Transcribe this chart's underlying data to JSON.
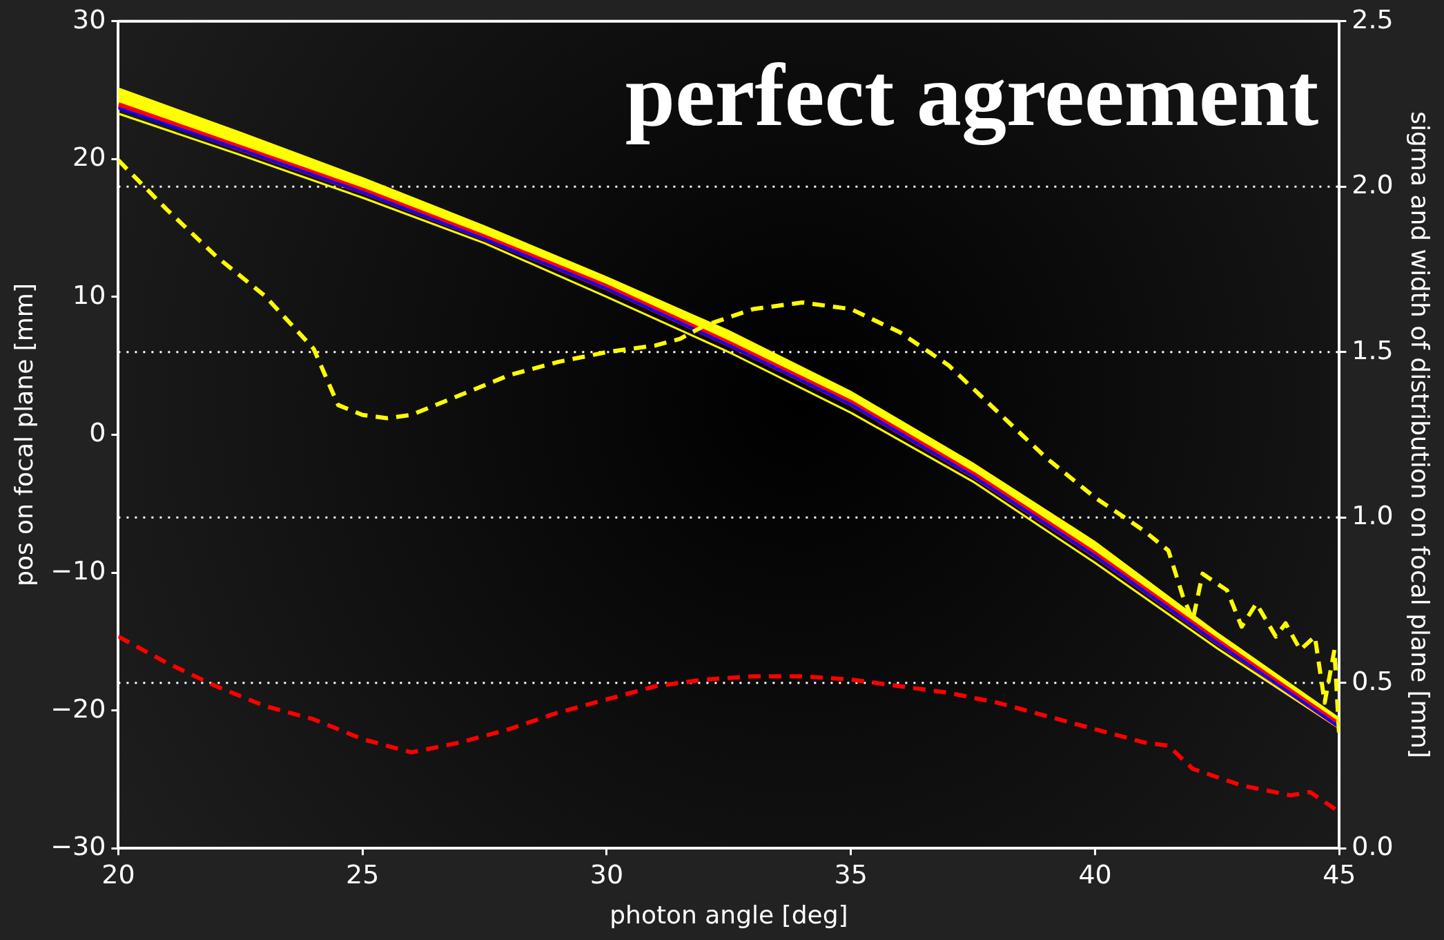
{
  "chart_data": {
    "type": "line",
    "xlabel": "photon angle [deg]",
    "ylabel": "pos on focal plane [mm]",
    "y2label": "sigma and width of distribution on focal plane [mm]",
    "annotations": [
      "perfect agreement"
    ],
    "xlim": [
      20,
      45
    ],
    "xticks": [
      20,
      25,
      30,
      35,
      40,
      45
    ],
    "ylim": [
      -30,
      30
    ],
    "yticks": [
      -30,
      -20,
      -10,
      0,
      10,
      20,
      30
    ],
    "y2lim": [
      0,
      2.5
    ],
    "y2ticks": [
      {
        "value": 0,
        "label": "0.0"
      },
      0.5,
      {
        "value": 1,
        "label": "1.0"
      },
      1.5,
      {
        "value": 2,
        "label": "2.0"
      },
      2.5
    ],
    "grid": "y",
    "legend": false,
    "marker": "none",
    "x": [
      20,
      22.5,
      25,
      27.5,
      30,
      32.5,
      35,
      37.5,
      40,
      42.5,
      45
    ],
    "series": [
      {
        "color": "#ffff00",
        "values": [
          23.3,
          20.3,
          17.2,
          13.9,
          10.0,
          6.0,
          1.6,
          -3.4,
          -9.3,
          -15.5,
          -21.3
        ],
        "lower": [
          23.9,
          20.8,
          17.7,
          14.3,
          10.7,
          6.6,
          2.3,
          -2.9,
          -8.7,
          -15.0,
          -21.1
        ],
        "upper": [
          25.2,
          22.0,
          18.7,
          15.2,
          11.5,
          7.6,
          3.2,
          -2.0,
          -7.7,
          -14.3,
          -20.5
        ],
        "line_style": "solid"
      },
      {
        "color": "#ff0000",
        "values": [
          23.9,
          20.8,
          17.7,
          14.3,
          10.7,
          6.6,
          2.3,
          -2.9,
          -8.7,
          -15.0,
          -21.1
        ],
        "line_style": "solid"
      },
      {
        "color": "#0000ff",
        "values": [
          23.7,
          20.7,
          17.6,
          14.2,
          10.6,
          6.5,
          2.2,
          -3.0,
          -8.8,
          -15.1,
          -21.2
        ],
        "line_style": "solid"
      },
      {
        "color": "#ffff00",
        "axis": "y2",
        "line_style": "dashed",
        "x": [
          20,
          21,
          22,
          23,
          24,
          24.5,
          25,
          25.5,
          26,
          27,
          28,
          29,
          30,
          31,
          31.5,
          32,
          33,
          34,
          35,
          36,
          37,
          38,
          39,
          40,
          41,
          41.5,
          41.8,
          42,
          42.2,
          42.7,
          43,
          43.3,
          43.7,
          43.9,
          44.2,
          44.5,
          44.7,
          44.9,
          45
        ],
        "values": [
          2.08,
          1.93,
          1.79,
          1.67,
          1.51,
          1.34,
          1.31,
          1.3,
          1.31,
          1.37,
          1.43,
          1.47,
          1.5,
          1.52,
          1.54,
          1.58,
          1.63,
          1.65,
          1.63,
          1.56,
          1.46,
          1.32,
          1.18,
          1.06,
          0.96,
          0.9,
          0.76,
          0.69,
          0.83,
          0.78,
          0.67,
          0.74,
          0.64,
          0.68,
          0.6,
          0.64,
          0.44,
          0.6,
          0.33
        ]
      },
      {
        "color": "#ff0000",
        "axis": "y2",
        "line_style": "dashed",
        "x": [
          20,
          20.5,
          21,
          22,
          23,
          24,
          25,
          26,
          27,
          28,
          29,
          30,
          31,
          32,
          33,
          34,
          35,
          36,
          37,
          38,
          39,
          40,
          41,
          41.5,
          42,
          43,
          44,
          44.4,
          45
        ],
        "values": [
          0.64,
          0.6,
          0.56,
          0.49,
          0.43,
          0.39,
          0.33,
          0.29,
          0.32,
          0.36,
          0.41,
          0.45,
          0.49,
          0.51,
          0.52,
          0.52,
          0.51,
          0.49,
          0.47,
          0.44,
          0.4,
          0.36,
          0.32,
          0.31,
          0.24,
          0.19,
          0.16,
          0.17,
          0.11
        ]
      }
    ]
  }
}
